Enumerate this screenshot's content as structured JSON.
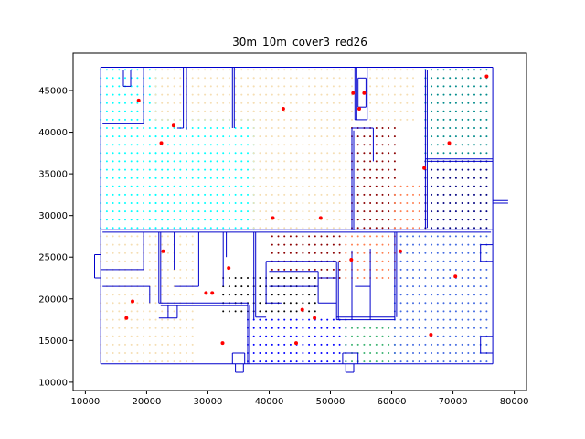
{
  "chart_data": {
    "type": "scatter",
    "title": "30m_10m_cover3_red26",
    "xlabel": "",
    "ylabel": "",
    "xlim": [
      8000,
      82000
    ],
    "ylim": [
      9000,
      49500
    ],
    "xticks": [
      10000,
      20000,
      30000,
      40000,
      50000,
      60000,
      70000,
      80000
    ],
    "yticks": [
      10000,
      15000,
      20000,
      25000,
      30000,
      35000,
      40000,
      45000
    ],
    "grid": false,
    "colors": {
      "walls": "#0000cc",
      "red_points": "#ff0000",
      "cyan_region": "#00ffff",
      "teal_region": "#008b8b",
      "darkred_region": "#8b0000",
      "orange_region": "#ff7f50",
      "wheat_region": "#f5deb3",
      "royal_region": "#4169e1",
      "black_region": "#000000",
      "blue_region": "#0000ff",
      "green_region": "#3cb371"
    },
    "regions": [
      {
        "color": "#00ffff",
        "x0": 12500,
        "x1": 21500,
        "y0": 28500,
        "y1": 47500
      },
      {
        "color": "#00ffff",
        "x0": 21500,
        "x1": 37500,
        "y0": 28500,
        "y1": 41500
      },
      {
        "color": "#f5deb3",
        "x0": 21500,
        "x1": 37500,
        "y0": 41500,
        "y1": 47500
      },
      {
        "color": "#f5deb3",
        "x0": 37500,
        "x1": 53500,
        "y0": 28500,
        "y1": 47500
      },
      {
        "color": "#8b0000",
        "x0": 53500,
        "x1": 60500,
        "y0": 28500,
        "y1": 40500
      },
      {
        "color": "#ff7f50",
        "x0": 60500,
        "x1": 65500,
        "y0": 28500,
        "y1": 33500
      },
      {
        "color": "#f5deb3",
        "x0": 56500,
        "x1": 63500,
        "y0": 41500,
        "y1": 47500
      },
      {
        "color": "#008b8b",
        "x0": 65500,
        "x1": 75500,
        "y0": 37500,
        "y1": 47500
      },
      {
        "color": "#000080",
        "x0": 65500,
        "x1": 75500,
        "y0": 28500,
        "y1": 36500
      },
      {
        "color": "#f5deb3",
        "x0": 12500,
        "x1": 27500,
        "y0": 12500,
        "y1": 28000
      },
      {
        "color": "#8b0000",
        "x0": 40500,
        "x1": 51500,
        "y0": 22500,
        "y1": 27500
      },
      {
        "color": "#000000",
        "x0": 32500,
        "x1": 47500,
        "y0": 18500,
        "y1": 22500
      },
      {
        "color": "#0000ff",
        "x0": 36500,
        "x1": 52500,
        "y0": 12500,
        "y1": 17500
      },
      {
        "color": "#3cb371",
        "x0": 52500,
        "x1": 60500,
        "y0": 12500,
        "y1": 16500
      },
      {
        "color": "#4169e1",
        "x0": 60500,
        "x1": 75500,
        "y0": 12500,
        "y1": 27500
      },
      {
        "color": "#ff7f50",
        "x0": 52500,
        "x1": 60500,
        "y0": 22500,
        "y1": 27500
      }
    ],
    "red_points": [
      [
        18700,
        43800
      ],
      [
        24400,
        40800
      ],
      [
        22400,
        38700
      ],
      [
        42300,
        42800
      ],
      [
        55500,
        44700
      ],
      [
        54700,
        42800
      ],
      [
        53700,
        44700
      ],
      [
        65300,
        35700
      ],
      [
        69400,
        38700
      ],
      [
        75500,
        46700
      ],
      [
        40600,
        29700
      ],
      [
        48400,
        29700
      ],
      [
        22700,
        25700
      ],
      [
        53400,
        24700
      ],
      [
        61400,
        25700
      ],
      [
        70400,
        22700
      ],
      [
        17700,
        19700
      ],
      [
        16700,
        17700
      ],
      [
        29700,
        20700
      ],
      [
        30700,
        20700
      ],
      [
        33400,
        23700
      ],
      [
        45400,
        18700
      ],
      [
        47400,
        17700
      ],
      [
        32400,
        14700
      ],
      [
        44400,
        14700
      ],
      [
        66400,
        15700
      ]
    ]
  }
}
